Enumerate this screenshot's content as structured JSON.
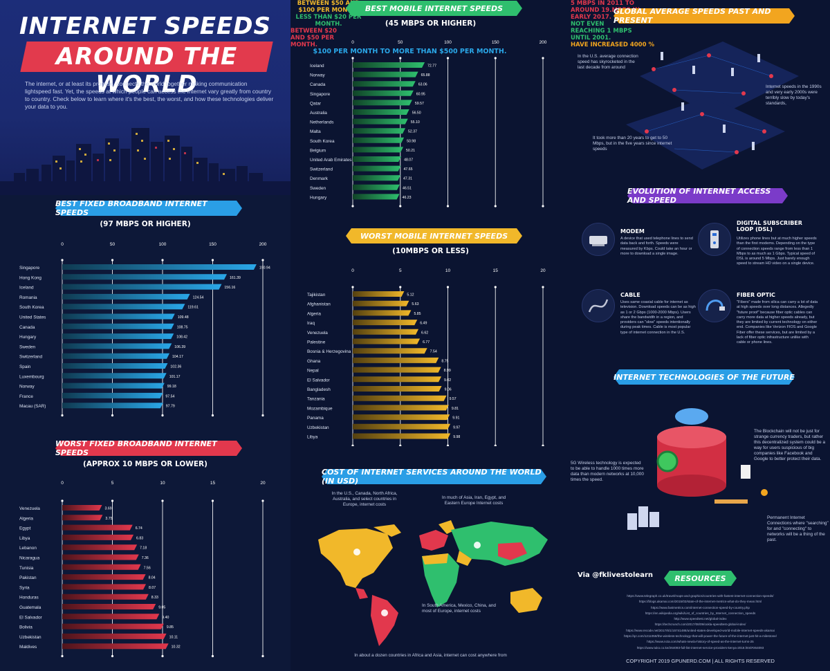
{
  "header": {
    "title_line1": "INTERNET SPEEDS",
    "title_line2": "AROUND THE WORLD",
    "intro": "The internet, or at least its promise, connects the world together making communication lightspeed fast. Yet, the speeds at which people can access the internet vary greatly from country to country. Check below to learn where it's the best, the worst, and how these technologies deliver your data to you."
  },
  "chart_data": [
    {
      "type": "bar",
      "title": "BEST FIXED BROADBAND INTERNET SPEEDS",
      "subtitle": "(97 MBPS OR HIGHER)",
      "orientation": "horizontal",
      "xlim": [
        0,
        200
      ],
      "ticks": [
        0,
        50,
        100,
        150,
        200
      ],
      "color": "#2aa7e8",
      "categories": [
        "Singapore",
        "Hong Kong",
        "Iceland",
        "Romania",
        "South Korea",
        "United States",
        "Canada",
        "Hungary",
        "Sweden",
        "Switzerland",
        "Spain",
        "Luxembourg",
        "Norway",
        "France",
        "Macau (SAR)"
      ],
      "values": [
        190.94,
        161.39,
        156.16,
        124.54,
        119.61,
        109.48,
        108.75,
        108.42,
        106.39,
        104.17,
        102.36,
        101.17,
        99.18,
        97.54,
        97.79
      ]
    },
    {
      "type": "bar",
      "title": "WORST FIXED BROADBAND INTERNET SPEEDS",
      "subtitle": "(APPROX 10 MBPS OR LOWER)",
      "orientation": "horizontal",
      "xlim": [
        0,
        20
      ],
      "ticks": [
        0,
        5,
        10,
        15,
        20
      ],
      "color": "#e2384d",
      "categories": [
        "Venezuela",
        "Algeria",
        "Egypt",
        "Libya",
        "Lebanon",
        "Nicaragua",
        "Tunisia",
        "Pakistan",
        "Syria",
        "Honduras",
        "Guatemala",
        "El Salvador",
        "Bolivia",
        "Uzbekistan",
        "Maldives"
      ],
      "values": [
        3.69,
        3.75,
        6.74,
        6.83,
        7.18,
        7.36,
        7.56,
        8.04,
        8.07,
        8.33,
        9.05,
        9.4,
        9.85,
        10.11,
        10.32
      ]
    },
    {
      "type": "bar",
      "title": "BEST MOBILE INTERNET SPEEDS",
      "subtitle": "(45 MBPS OR HIGHER)",
      "orientation": "horizontal",
      "xlim": [
        0,
        200
      ],
      "ticks": [
        0,
        50,
        100,
        150,
        200
      ],
      "color": "#2fbf6e",
      "categories": [
        "Iceland",
        "Norway",
        "Canada",
        "Singapore",
        "Qatar",
        "Australia",
        "Netherlands",
        "Malta",
        "South Korea",
        "Belgium",
        "United Arab Emirates",
        "Switzerland",
        "Denmark",
        "Sweden",
        "Hungary"
      ],
      "values": [
        72.77,
        65.88,
        63.06,
        60.95,
        59.57,
        56.5,
        55.1,
        52.37,
        50.98,
        50.21,
        48.07,
        47.65,
        47.31,
        46.51,
        46.23
      ]
    },
    {
      "type": "bar",
      "title": "WORST MOBILE INTERNET SPEEDS",
      "subtitle": "(10MBPS OR LESS)",
      "orientation": "horizontal",
      "xlim": [
        0,
        20
      ],
      "ticks": [
        0,
        5,
        10,
        15,
        20
      ],
      "color": "#f1b82a",
      "categories": [
        "Tajikistan",
        "Afghanistan",
        "Algeria",
        "Iraq",
        "Venezuela",
        "Palestine",
        "Bosnia & Herzegovina",
        "Ghana",
        "Nepal",
        "El Salvador",
        "Bangladesh",
        "Tanzania",
        "Mozambique",
        "Panama",
        "Uzbekistan",
        "Libya"
      ],
      "values": [
        5.12,
        5.63,
        5.85,
        6.49,
        6.62,
        6.77,
        7.54,
        8.75,
        8.99,
        9.02,
        9.06,
        9.57,
        9.81,
        9.91,
        9.97,
        9.98
      ]
    }
  ],
  "cost": {
    "title": "COST OF INTERNET SERVICES AROUND THE WORLD (IN USD)",
    "na_text": "In the U.S., Canada, North Africa, Australia, and select countries in Europe, internet costs",
    "na_highlight": "BETWEEN $50 AND $100 PER MONTH.",
    "asia_text": "In much of Asia, Iran, Egypt, and Eastern Europe Internet costs",
    "asia_highlight": "LESS THAN $20 PER MONTH.",
    "sa_text": "In South America, Mexico, China, and most of Europe, internet costs",
    "sa_highlight": "BETWEEN $20 AND $50 PER MONTH.",
    "footer_text": "In about a dozen countries in Africa and Asia, internet can cost anywhere from",
    "footer_highlight": "$100 PER MONTH TO MORE THAN $500 PER MONTH."
  },
  "global": {
    "title": "GLOBAL AVERAGE SPEEDS PAST AND PRESENT",
    "us_text": "In the U.S. average connection speed has skyrocketed in the last decade from around",
    "us_highlight": "5 MBPS IN 2011 TO AROUND 19.MBPS IN EARLY 2017.",
    "nineties_text": "Internet speeds in the 1990s and very early 2000s were terribly slow by today's standards,",
    "nineties_highlight": "NOT EVEN REACHING 1 MBPS UNTIL 2001.",
    "twenty_text": "It took more than 20 years to get to 50 Mbps, but in the five years since internet speeds",
    "twenty_highlight": "HAVE INCREASED 4000 %"
  },
  "evolution": {
    "title": "EVOLUTION OF INTERNET ACCESS AND SPEED",
    "items": [
      {
        "title": "MODEM",
        "desc": "A device that used telephone lines to send data back and forth. Speeds were measured by Kbps. Could take an hour or more to download a single image."
      },
      {
        "title": "DIGITAL SUBSCRIBER LOOP (DSL)",
        "desc": "Utilizes phone lines but at much higher speeds than the first modems. Depending on the type of connection speeds range from less than 1 Mbps to as much as 1 Gbps. Typical speed of DSL is around 5 Mbps. Just barely enough speed to stream HD video on a single device."
      },
      {
        "title": "CABLE",
        "desc": "Uses same coaxial cable for internet as television. Download speeds can be as high as 1 or 2 Gbps (1000-2000 Mbps). Users share the bandwidth in a region, and providers can \"slow\" speeds intentionally during peak times. Cable is most popular type of internet connection in the U.S."
      },
      {
        "title": "FIBER OPTIC",
        "desc": "\"Fibers\" made from silica can carry a lot of data at high speeds over long distances. Allegedly \"future proof\" because fiber optic cables can carry more data at higher speeds already, but they are limited by current technology on either end. Companies like Verizon FIOS and Google Fiber offer these services, but are limited by a lack of fiber optic infrastructure unlike with cable or phone lines."
      }
    ]
  },
  "future": {
    "title": "INTERNET TECHNOLOGIES OF THE FUTURE",
    "blockchain": "The Blockchain will not be just for strange currency traders, but rather this decentralized system could be a way for users suspicious of big companies like Facebook and Google to better protect their data.",
    "fiveg": "5G Wireless technology is expected to be able to handle 1000 times more data than modern networks at 10,000 times the speed.",
    "permanent": "Permanent Internet Connections where \"searching\" for and \"connecting\" to networks will be a thing of the past."
  },
  "via": "Via @fklivestolearn",
  "resources": {
    "title": "RESOURCES",
    "links": [
      "https://www.telegraph.co.uk/travel/maps-and-graphics/countries-with-fastest-internet-connection-speeds/",
      "https://blogs.akamai.com/2015/03/state-of-the-internet-metrics-what-do-they-mean.html",
      "https://www.fastmetrics.com/internet-connection-speed-by-country.php",
      "https://en.wikipedia.org/wiki/List_of_countries_by_Internet_connection_speeds",
      "http://www.speedtest.net/global-index",
      "https://techcrunch.com/2017/08/09/ookla-speedtest-global-index/",
      "https://www.recode.net/2017/6/1/15741486/united-states-developed-world-mobile-internet-speeds-akamai",
      "https://qz.com/1211058/the-wireless-technology-that-will-power-the-future-of-the-internet-just-hit-a-milestone/",
      "https://www.ncta.com/whats-new/a-history-of-speed-as-the-internet-turns-25",
      "https://www.tuko.co.ke/264093-full-list-internet-service-providers-kenya-2018.html#264093"
    ],
    "copyright": "COPYRIGHT 2019 GPUNERD.COM | ALL RIGHTS RESERVED"
  }
}
